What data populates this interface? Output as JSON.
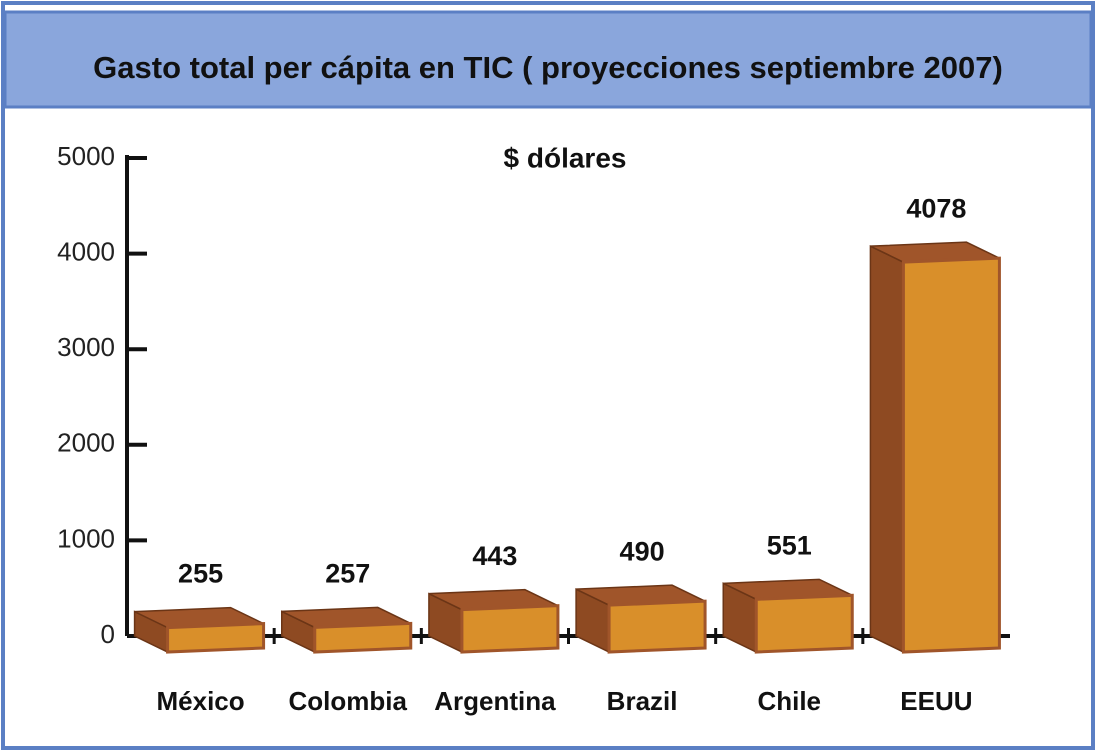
{
  "chart_data": {
    "type": "bar3d",
    "title": "Gasto total per cápita en TIC ( proyecciones septiembre 2007)",
    "subtitle": "$ dólares",
    "categories": [
      "México",
      "Colombia",
      "Argentina",
      "Brazil",
      "Chile",
      "EEUU"
    ],
    "values": [
      255,
      257,
      443,
      490,
      551,
      4078
    ],
    "color": "#d98f2a",
    "ylim": [
      0,
      5000
    ],
    "yticks": [
      0,
      1000,
      2000,
      3000,
      4000,
      5000
    ]
  }
}
